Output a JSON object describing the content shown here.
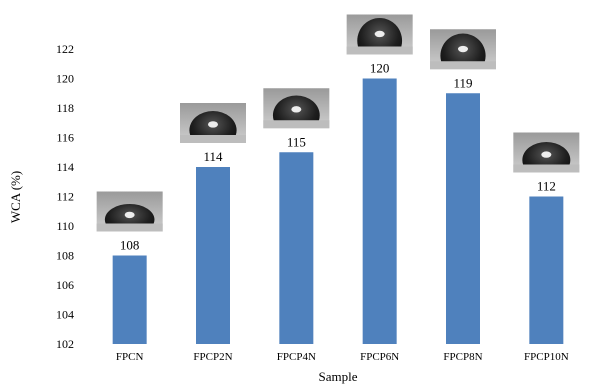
{
  "chart_data": {
    "type": "bar",
    "title": "",
    "xlabel": "Sample",
    "ylabel": "WCA (%)",
    "categories": [
      "FPCN",
      "FPCP2N",
      "FPCP4N",
      "FPCP6N",
      "FPCP8N",
      "FPCP10N"
    ],
    "values": [
      108,
      114,
      115,
      120,
      119,
      112
    ],
    "data_labels": [
      "108",
      "114",
      "115",
      "120",
      "119",
      "112"
    ],
    "ylim": [
      102,
      122
    ],
    "yticks": [
      102,
      104,
      106,
      108,
      110,
      112,
      114,
      116,
      118,
      120,
      122
    ],
    "ytick_labels": [
      "102",
      "104",
      "106",
      "108",
      "110",
      "112",
      "114",
      "116",
      "118",
      "120",
      "122"
    ],
    "grid": false,
    "legend": "none",
    "bar_color": "#4f81bd",
    "annotations": "water droplet photograph above each bar"
  }
}
